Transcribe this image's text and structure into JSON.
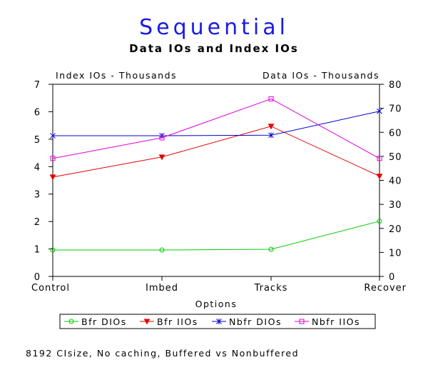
{
  "chart_data": {
    "type": "line",
    "title": "Sequential",
    "subtitle": "Data IOs and Index IOs",
    "xlabel": "Options",
    "categories": [
      "Control",
      "Imbed",
      "Tracks",
      "Recover"
    ],
    "y_left": {
      "label": "Index IOs - Thousands",
      "range": [
        0,
        7
      ],
      "ticks": [
        "0",
        "1",
        "2",
        "3",
        "4",
        "5",
        "6",
        "7"
      ]
    },
    "y_right": {
      "label": "Data IOs - Thousands",
      "range": [
        0,
        80
      ],
      "ticks": [
        "0",
        "10",
        "20",
        "30",
        "40",
        "50",
        "60",
        "70",
        "80"
      ]
    },
    "grid": false,
    "legend_position": "bottom",
    "series": [
      {
        "name": "Bfr DIOs",
        "axis": "right",
        "color": "#00cc00",
        "marker": "circle",
        "values": [
          11,
          11,
          11.3,
          23
        ]
      },
      {
        "name": "Bfr IIOs",
        "axis": "left",
        "color": "#e60000",
        "marker": "triangle",
        "values": [
          3.62,
          4.35,
          5.47,
          3.65
        ]
      },
      {
        "name": "Nbfr DIOs",
        "axis": "right",
        "color": "#0000cc",
        "marker": "star",
        "values": [
          58.6,
          58.6,
          58.8,
          68.8
        ]
      },
      {
        "name": "Nbfr IIOs",
        "axis": "left",
        "color": "#dd00dd",
        "marker": "square",
        "values": [
          4.3,
          5.05,
          6.47,
          4.3
        ]
      }
    ],
    "footnote": "8192 CIsize, No caching, Buffered vs Nonbuffered"
  }
}
